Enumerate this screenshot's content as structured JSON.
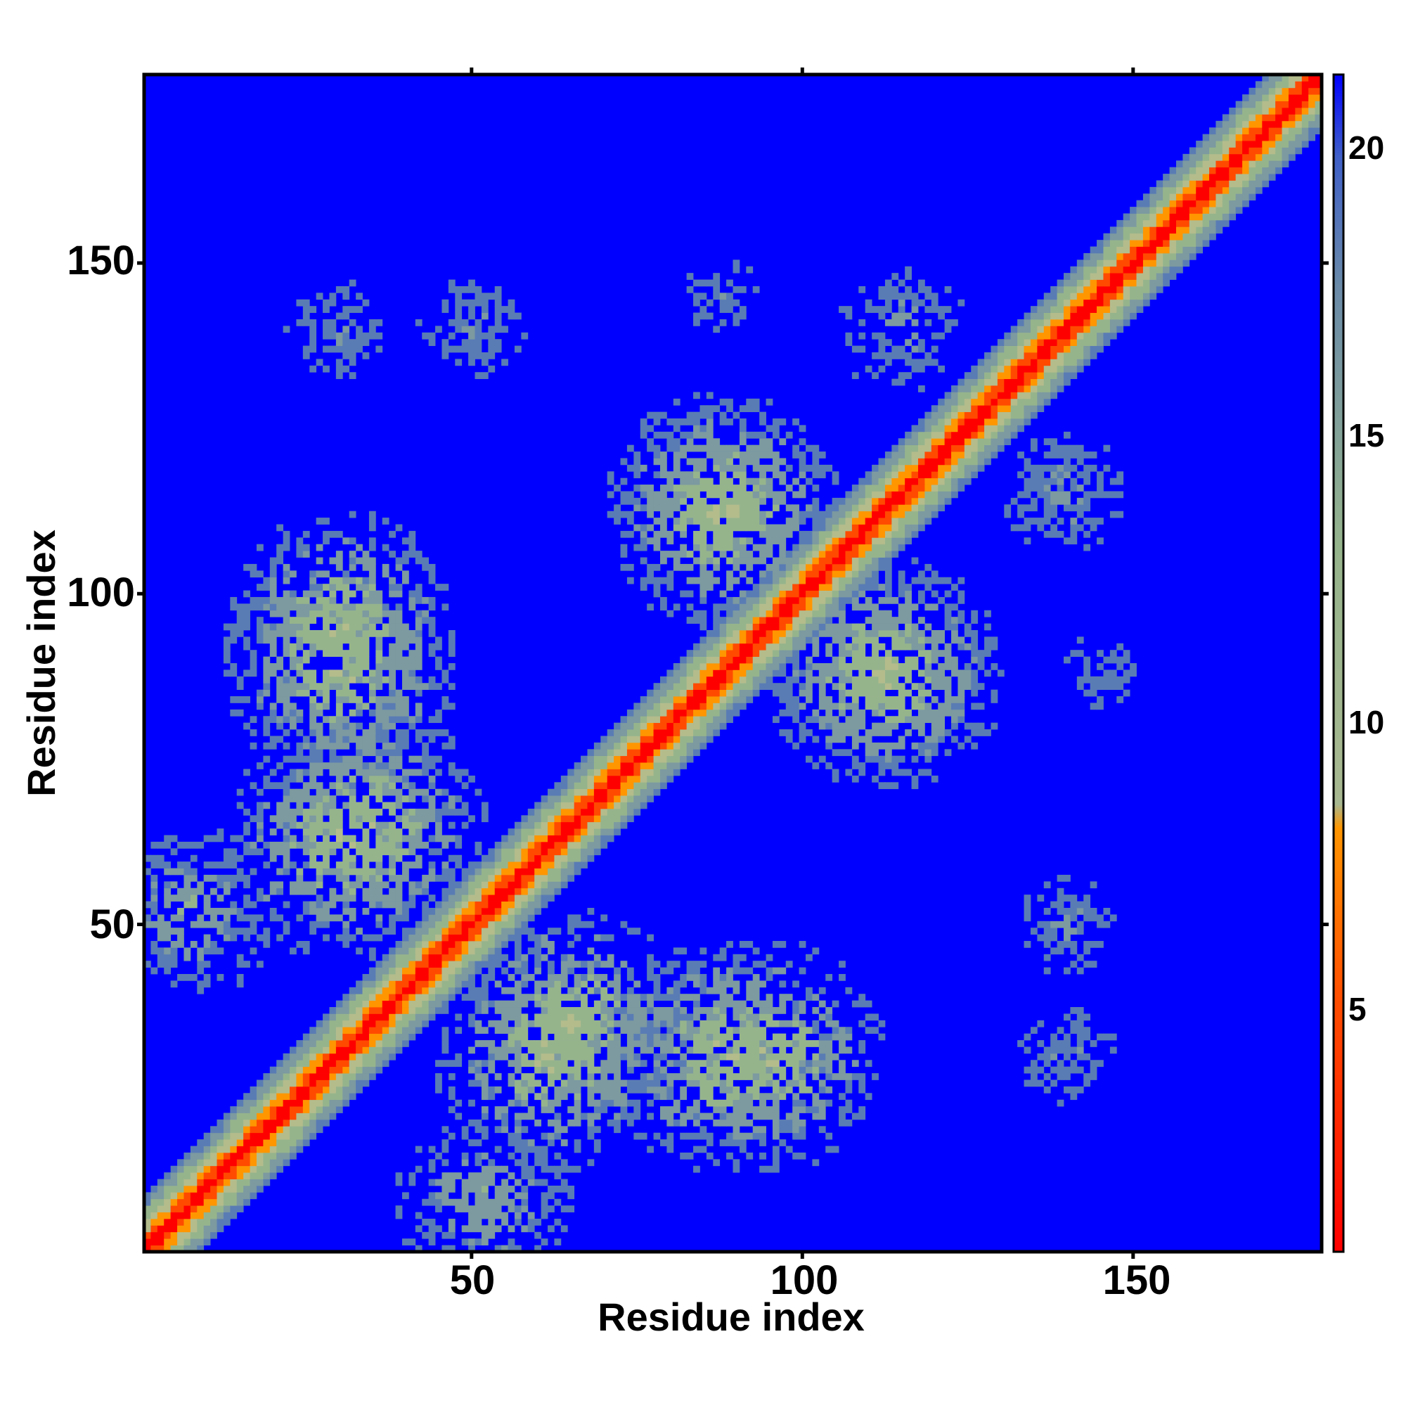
{
  "chart_data": {
    "type": "heatmap",
    "title": "",
    "xlabel": "Residue index",
    "ylabel": "Residue index",
    "xlim": [
      1,
      178
    ],
    "ylim": [
      1,
      178
    ],
    "x_ticks": [
      "50",
      "100",
      "150"
    ],
    "y_ticks": [
      "50",
      "100",
      "150"
    ],
    "colorbar": {
      "range": [
        0,
        21
      ],
      "ticks": [
        "5",
        "10",
        "15",
        "20"
      ],
      "colors": [
        "#ff0000",
        "#ff8c00",
        "#96b48c",
        "#4f78a8",
        "#0000ff"
      ]
    },
    "description_of_values": "symmetric residue-residue distance map",
    "bands": [
      {
        "x": [
          55,
          118
        ],
        "y": [
          55,
          118
        ]
      },
      {
        "x": [
          2,
          178
        ],
        "y": [
          2,
          178
        ]
      }
    ],
    "off_diagonal_contacts": [
      {
        "center": [
          30,
          95
        ],
        "value": 6
      },
      {
        "center": [
          35,
          65
        ],
        "value": 6
      },
      {
        "center": [
          62,
          30
        ],
        "value": 6
      },
      {
        "center": [
          88,
          30
        ],
        "value": 6
      },
      {
        "center": [
          88,
          112
        ],
        "value": 6
      },
      {
        "center": [
          113,
          88
        ],
        "value": 6
      },
      {
        "center": [
          8,
          52
        ],
        "value": 9
      },
      {
        "center": [
          140,
          115
        ],
        "value": 11
      },
      {
        "center": [
          145,
          88
        ],
        "value": 13
      },
      {
        "center": [
          140,
          50
        ],
        "value": 12
      },
      {
        "center": [
          140,
          30
        ],
        "value": 12
      }
    ]
  }
}
